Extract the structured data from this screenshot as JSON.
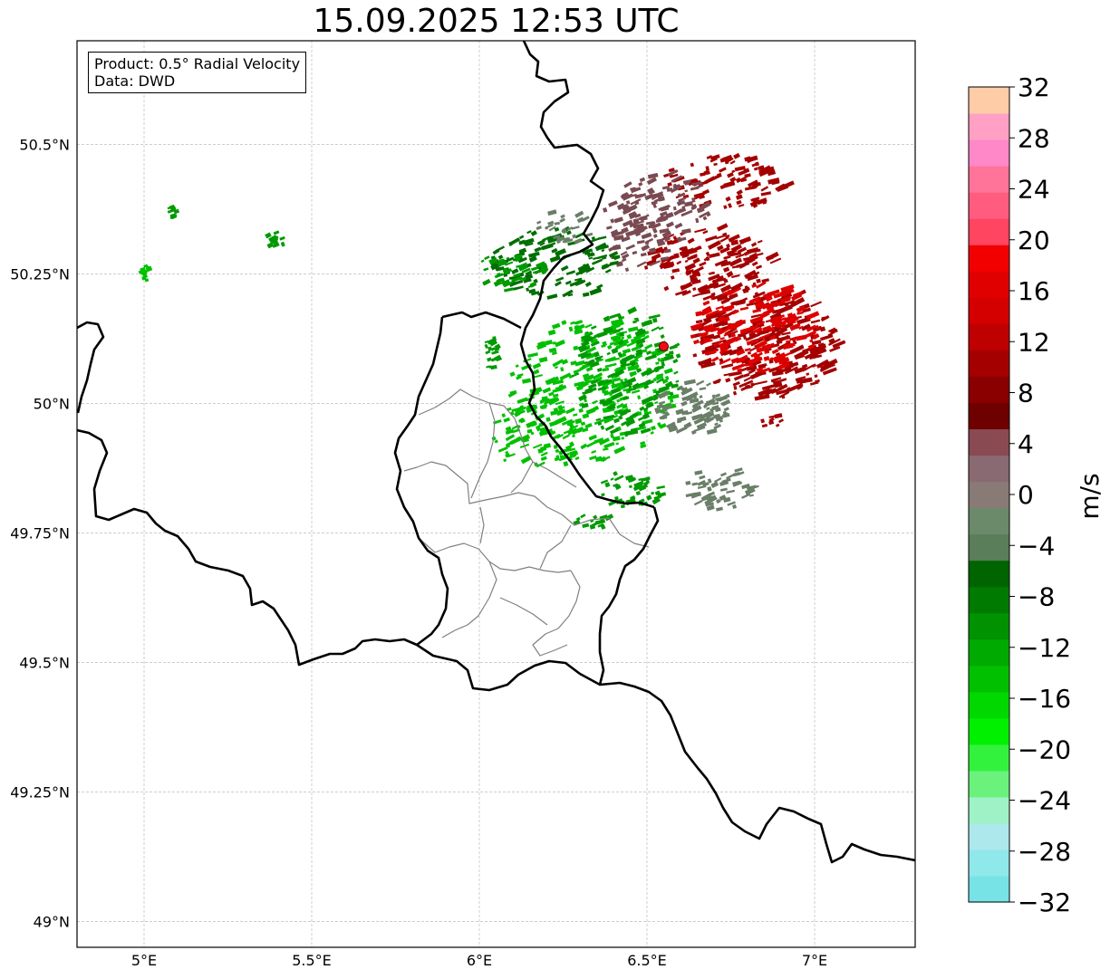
{
  "title": "15.09.2025 12:53 UTC",
  "info_box": {
    "product_line": "Product: 0.5° Radial Velocity",
    "data_line": "Data: DWD"
  },
  "map": {
    "extent": {
      "lon_min": 4.8,
      "lon_max": 7.3,
      "lat_min": 48.95,
      "lat_max": 50.7
    },
    "lon_ticks": [
      {
        "value": 5.0,
        "label": "5°E"
      },
      {
        "value": 5.5,
        "label": "5.5°E"
      },
      {
        "value": 6.0,
        "label": "6°E"
      },
      {
        "value": 6.5,
        "label": "6.5°E"
      },
      {
        "value": 7.0,
        "label": "7°E"
      }
    ],
    "lat_ticks": [
      {
        "value": 50.5,
        "label": "50.5°N"
      },
      {
        "value": 50.25,
        "label": "50.25°N"
      },
      {
        "value": 50.0,
        "label": "50°N"
      },
      {
        "value": 49.75,
        "label": "49.75°N"
      },
      {
        "value": 49.5,
        "label": "49.5°N"
      },
      {
        "value": 49.25,
        "label": "49.25°N"
      },
      {
        "value": 49.0,
        "label": "49°N"
      }
    ],
    "radar_site": {
      "lon": 6.55,
      "lat": 50.11,
      "color": "#ee1111"
    },
    "gridline_color": "#b0b0b0",
    "border_color": "#000000",
    "admin_color": "#808080"
  },
  "colorbar": {
    "label": "m/s",
    "min": -32,
    "max": 32,
    "step": 4,
    "tick_labels": [
      "32",
      "28",
      "24",
      "20",
      "16",
      "12",
      "8",
      "4",
      "0",
      "−4",
      "−8",
      "−12",
      "−16",
      "−20",
      "−24",
      "−28",
      "−32"
    ],
    "colors_bottom_to_top": [
      "#77e3e7",
      "#8fe8ea",
      "#ace8ec",
      "#9ef2c6",
      "#6af27c",
      "#33f23d",
      "#00f000",
      "#00d800",
      "#00c000",
      "#00aa00",
      "#009200",
      "#007a00",
      "#006400",
      "#5a7d5a",
      "#6a8a6a",
      "#8a7a76",
      "#8a6a72",
      "#8a4a52",
      "#6e0000",
      "#8a0000",
      "#a40000",
      "#be0000",
      "#d40000",
      "#e00000",
      "#f20000",
      "#ff4560",
      "#ff5c80",
      "#ff7498",
      "#ff88c8",
      "#ffa0c4",
      "#ffcca8"
    ]
  },
  "velocity_palette": {
    "inbound_strong": "#00c000",
    "inbound": "#009a00",
    "inbound_weak": "#006e00",
    "near_zero": "#6a7e68",
    "outbound_weak": "#7a4a52",
    "outbound": "#a40000",
    "outbound_strong": "#dd0000"
  }
}
